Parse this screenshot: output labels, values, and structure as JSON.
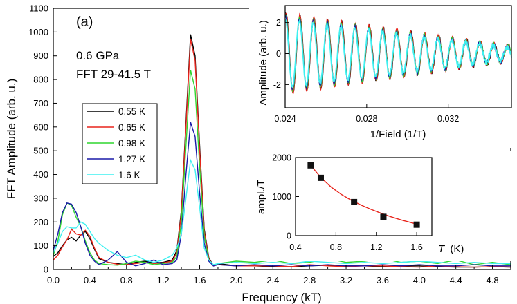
{
  "chart_data": [
    {
      "type": "line",
      "panel_label": "(a)",
      "annotations": [
        "0.6 GPa",
        "FFT 29-41.5 T"
      ],
      "xlabel": "Frequency (kT)",
      "ylabel": "FFT Amplitude (arb. u.)",
      "xlim": [
        0,
        5
      ],
      "ylim": [
        0,
        1100
      ],
      "xticks": [
        "0.0",
        "0.4",
        "0.8",
        "1.2",
        "1.6",
        "2.0",
        "2.4",
        "2.8",
        "3.2",
        "3.6",
        "4.0",
        "4.4",
        "4.8"
      ],
      "yticks": [
        "0",
        "100",
        "200",
        "300",
        "400",
        "500",
        "600",
        "700",
        "800",
        "900",
        "1000",
        "1100"
      ],
      "legend_position": "left",
      "series": [
        {
          "name": "0.55 K",
          "color": "#000000",
          "x": [
            0.0,
            0.05,
            0.1,
            0.15,
            0.2,
            0.25,
            0.3,
            0.35,
            0.4,
            0.45,
            0.5,
            0.6,
            0.7,
            0.8,
            0.9,
            1.0,
            1.1,
            1.2,
            1.3,
            1.35,
            1.4,
            1.45,
            1.5,
            1.55,
            1.6,
            1.65,
            1.7,
            1.75,
            1.8,
            2.0,
            2.2,
            2.4,
            2.6,
            2.8,
            3.0,
            3.2,
            3.4,
            3.6,
            3.8,
            4.0,
            4.2,
            4.4,
            4.6,
            4.8,
            5.0
          ],
          "y": [
            55,
            70,
            100,
            125,
            135,
            120,
            145,
            160,
            130,
            85,
            45,
            30,
            25,
            20,
            30,
            35,
            28,
            30,
            40,
            80,
            250,
            620,
            990,
            900,
            520,
            170,
            50,
            15,
            25,
            15,
            15,
            12,
            12,
            15,
            18,
            15,
            15,
            12,
            15,
            15,
            12,
            10,
            10,
            12,
            10
          ]
        },
        {
          "name": "0.65 K",
          "color": "#e8241c",
          "x": [
            0.0,
            0.05,
            0.1,
            0.15,
            0.2,
            0.25,
            0.3,
            0.35,
            0.4,
            0.45,
            0.5,
            0.6,
            0.7,
            0.8,
            0.9,
            1.0,
            1.1,
            1.2,
            1.3,
            1.35,
            1.4,
            1.45,
            1.5,
            1.55,
            1.6,
            1.65,
            1.7,
            1.75,
            1.8,
            2.0,
            2.2,
            2.4,
            2.6,
            2.8,
            3.0,
            3.2,
            3.4,
            3.6,
            3.8,
            4.0,
            4.2,
            4.4,
            4.6,
            4.8,
            5.0
          ],
          "y": [
            40,
            60,
            95,
            125,
            170,
            150,
            145,
            165,
            140,
            90,
            50,
            30,
            22,
            20,
            25,
            30,
            25,
            28,
            35,
            70,
            240,
            600,
            970,
            880,
            500,
            160,
            45,
            15,
            20,
            15,
            15,
            15,
            12,
            20,
            15,
            12,
            15,
            15,
            12,
            10,
            15,
            12,
            10,
            12,
            10
          ]
        },
        {
          "name": "0.98 K",
          "color": "#2fd62f",
          "x": [
            0.0,
            0.05,
            0.1,
            0.15,
            0.2,
            0.25,
            0.3,
            0.35,
            0.4,
            0.45,
            0.5,
            0.6,
            0.7,
            0.8,
            0.9,
            1.0,
            1.1,
            1.2,
            1.3,
            1.35,
            1.4,
            1.45,
            1.5,
            1.55,
            1.6,
            1.65,
            1.7,
            1.75,
            1.8,
            2.0,
            2.2,
            2.4,
            2.6,
            2.8,
            3.0,
            3.2,
            3.4,
            3.6,
            3.8,
            4.0,
            4.2,
            4.4,
            4.6,
            4.8,
            5.0
          ],
          "y": [
            60,
            120,
            230,
            280,
            270,
            220,
            180,
            120,
            70,
            40,
            25,
            20,
            18,
            25,
            35,
            30,
            20,
            25,
            30,
            55,
            200,
            520,
            840,
            760,
            430,
            140,
            40,
            15,
            25,
            35,
            30,
            40,
            25,
            30,
            45,
            30,
            35,
            45,
            30,
            35,
            25,
            40,
            20,
            30,
            20
          ]
        },
        {
          "name": "1.27 K",
          "color": "#1a1aa8",
          "x": [
            0.0,
            0.05,
            0.1,
            0.15,
            0.2,
            0.25,
            0.3,
            0.35,
            0.4,
            0.45,
            0.5,
            0.6,
            0.7,
            0.8,
            0.9,
            1.0,
            1.1,
            1.2,
            1.3,
            1.35,
            1.4,
            1.45,
            1.5,
            1.55,
            1.6,
            1.65,
            1.7,
            1.75,
            1.8,
            2.0,
            2.2,
            2.4,
            2.6,
            2.8,
            3.0,
            3.2,
            3.4,
            3.6,
            3.8,
            4.0,
            4.2,
            4.4,
            4.6,
            4.8,
            5.0
          ],
          "y": [
            80,
            150,
            240,
            280,
            275,
            240,
            180,
            110,
            60,
            35,
            20,
            40,
            75,
            30,
            15,
            25,
            40,
            20,
            25,
            40,
            150,
            400,
            620,
            560,
            320,
            110,
            35,
            15,
            20,
            15,
            20,
            15,
            20,
            15,
            20,
            15,
            15,
            20,
            15,
            20,
            15,
            15,
            20,
            15,
            15
          ]
        },
        {
          "name": "1.6 K",
          "color": "#3ff0f0",
          "x": [
            0.0,
            0.05,
            0.1,
            0.15,
            0.2,
            0.25,
            0.3,
            0.35,
            0.4,
            0.45,
            0.5,
            0.6,
            0.7,
            0.8,
            0.9,
            1.0,
            1.1,
            1.2,
            1.3,
            1.35,
            1.4,
            1.45,
            1.5,
            1.55,
            1.6,
            1.65,
            1.7,
            1.75,
            1.8,
            2.0,
            2.2,
            2.4,
            2.6,
            2.8,
            3.0,
            3.2,
            3.4,
            3.6,
            3.8,
            4.0,
            4.2,
            4.4,
            4.6,
            4.8,
            5.0
          ],
          "y": [
            70,
            110,
            160,
            180,
            175,
            175,
            200,
            190,
            160,
            130,
            110,
            80,
            60,
            50,
            60,
            40,
            30,
            40,
            60,
            90,
            150,
            300,
            460,
            420,
            260,
            90,
            40,
            20,
            25,
            30,
            25,
            30,
            25,
            35,
            30,
            25,
            30,
            25,
            30,
            35,
            30,
            25,
            30,
            25,
            25
          ]
        }
      ]
    },
    {
      "type": "line",
      "inset": "top-right",
      "xlabel": "1/Field (1/T)",
      "ylabel": "Amplitude (arb. u.)",
      "xlim": [
        0.024,
        0.0351
      ],
      "ylim": [
        -3.5,
        3.1
      ],
      "xticks": [
        "0.024",
        "0.028",
        "0.032"
      ],
      "yticks": [
        "-2",
        "0",
        "2"
      ],
      "oscillation": {
        "period": 0.00068,
        "phase": 5e-05,
        "start_amplitude": 2.6,
        "end_amplitude": 0.45
      },
      "series": [
        {
          "name": "0.55 K",
          "color": "#000000",
          "scale": 1.0
        },
        {
          "name": "0.65 K",
          "color": "#e8241c",
          "scale": 1.02
        },
        {
          "name": "0.98 K",
          "color": "#2fd62f",
          "scale": 0.96
        },
        {
          "name": "1.27 K",
          "color": "#1a1aa8",
          "scale": 0.92
        },
        {
          "name": "1.6 K",
          "color": "#3ff0f0",
          "scale": 0.85
        }
      ]
    },
    {
      "type": "scatter",
      "inset": "bottom-right",
      "xlabel_italic": "T",
      "xlabel_unit": "(K)",
      "ylabel": "ampl./T",
      "xlim": [
        0.4,
        1.75
      ],
      "ylim": [
        0,
        2000
      ],
      "xticks": [
        "0.4",
        "0.8",
        "1.2",
        "1.6"
      ],
      "yticks": [
        "0",
        "1000",
        "2000"
      ],
      "points": {
        "x": [
          0.55,
          0.65,
          0.98,
          1.27,
          1.6
        ],
        "y": [
          1800,
          1480,
          860,
          480,
          280
        ]
      },
      "fit": {
        "color": "#e8241c",
        "x": [
          0.55,
          0.65,
          0.75,
          0.85,
          0.95,
          1.05,
          1.15,
          1.25,
          1.35,
          1.45,
          1.55,
          1.6
        ],
        "y": [
          1800,
          1490,
          1250,
          1060,
          910,
          780,
          670,
          570,
          480,
          400,
          330,
          295
        ]
      }
    }
  ]
}
